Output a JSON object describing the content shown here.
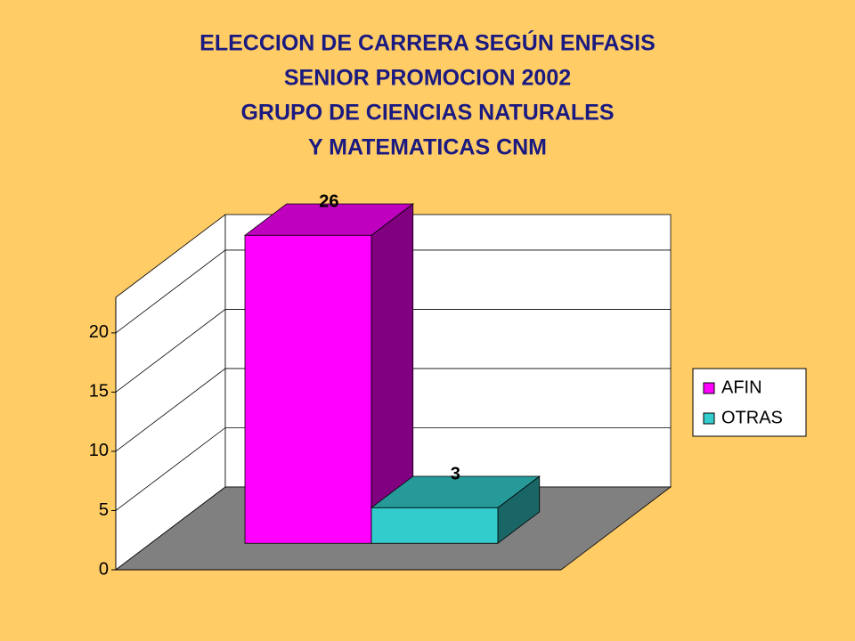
{
  "chart_data": {
    "type": "bar3d",
    "title": [
      "ELECCION DE CARRERA SEGÚN ENFASIS",
      "SENIOR PROMOCION 2002",
      "GRUPO DE CIENCIAS  NATURALES",
      "Y MATEMATICAS CNM"
    ],
    "series": [
      {
        "name": "AFIN",
        "color": "#ff00ff",
        "values": [
          26
        ]
      },
      {
        "name": "OTRAS",
        "color": "#33cccc",
        "values": [
          3
        ]
      }
    ],
    "ylim": [
      0,
      23
    ],
    "yticks": [
      0,
      5,
      10,
      15,
      20
    ],
    "grid": true,
    "legend": "right"
  }
}
